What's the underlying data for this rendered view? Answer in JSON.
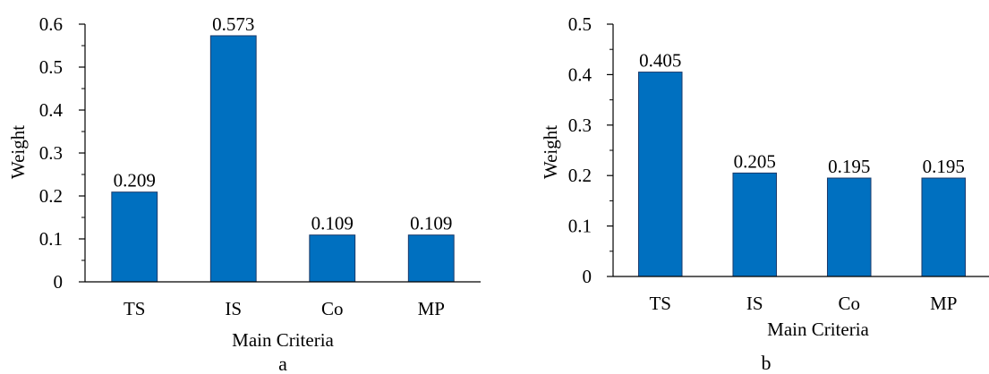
{
  "chart_data": [
    {
      "type": "bar",
      "panel_label": "a",
      "categories": [
        "TS",
        "IS",
        "Co",
        "MP"
      ],
      "values": [
        0.209,
        0.573,
        0.109,
        0.109
      ],
      "value_labels": [
        "0.209",
        "0.573",
        "0.109",
        "0.109"
      ],
      "xlabel": "Main Criteria",
      "ylabel": "Weight",
      "ylim": [
        0,
        0.6
      ],
      "yticks": [
        0,
        0.1,
        0.2,
        0.3,
        0.4,
        0.5,
        0.6
      ],
      "ytick_labels": [
        "0",
        "0.1",
        "0.2",
        "0.3",
        "0.4",
        "0.5",
        "0.6"
      ],
      "grid": false,
      "bar_color": "#0070C0"
    },
    {
      "type": "bar",
      "panel_label": "b",
      "categories": [
        "TS",
        "IS",
        "Co",
        "MP"
      ],
      "values": [
        0.405,
        0.205,
        0.195,
        0.195
      ],
      "value_labels": [
        "0.405",
        "0.205",
        "0.195",
        "0.195"
      ],
      "xlabel": "Main Criteria",
      "ylabel": "Weight",
      "ylim": [
        0,
        0.5
      ],
      "yticks": [
        0,
        0.1,
        0.2,
        0.3,
        0.4,
        0.5
      ],
      "ytick_labels": [
        "0",
        "0.1",
        "0.2",
        "0.3",
        "0.4",
        "0.5"
      ],
      "grid": false,
      "bar_color": "#0070C0"
    }
  ]
}
